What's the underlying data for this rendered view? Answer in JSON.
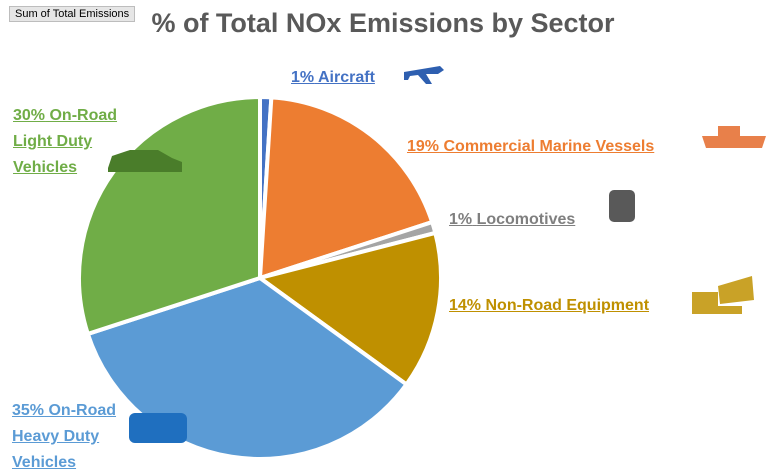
{
  "field_button": "Sum of Total Emissions",
  "chart_data": {
    "type": "pie",
    "title": "% of Total NOx Emissions by Sector",
    "categories": [
      "Aircraft",
      "Commercial Marine Vessels",
      "Locomotives",
      "Non-Road Equipment",
      "On-Road Heavy Duty Vehicles",
      "On-Road Light Duty Vehicles"
    ],
    "values": [
      1,
      19,
      1,
      14,
      35,
      30
    ],
    "value_labels": [
      "1%",
      "19%",
      "1%",
      "14%",
      "35%",
      "30%"
    ],
    "colors": [
      "#4472c4",
      "#ed7d31",
      "#a5a5a5",
      "#bf9000",
      "#5b9bd5",
      "#70ad47"
    ]
  }
}
